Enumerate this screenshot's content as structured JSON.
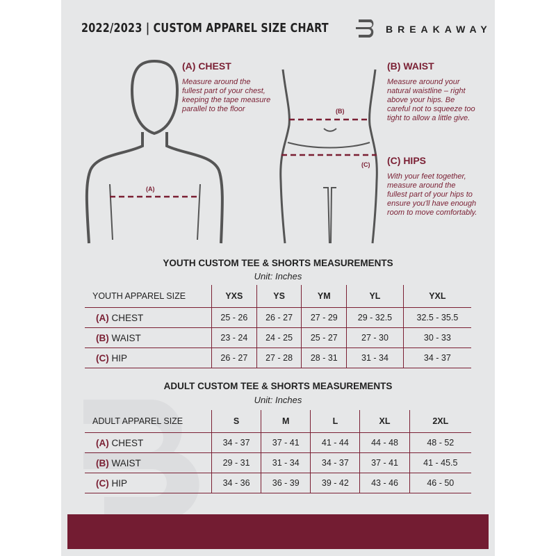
{
  "header": {
    "title": "2022/2023  |  CUSTOM APPAREL SIZE CHART",
    "brand": "BREAKAWAY"
  },
  "guides": {
    "chest": {
      "heading": "(A) CHEST",
      "text": "Measure around the fullest part of your chest, keeping the tape measure parallel to the floor",
      "marker": "(A)"
    },
    "waist": {
      "heading": "(B) WAIST",
      "text": "Measure around your natural waistline – right above your hips. Be careful not to squeeze too tight to allow a little give.",
      "marker": "(B)"
    },
    "hips": {
      "heading": "(C) HIPS",
      "text": "With your feet together, measure around the fullest part of your hips to ensure you'll have enough room to move comfortably.",
      "marker": "(C)"
    }
  },
  "youth": {
    "title": "YOUTH CUSTOM TEE & SHORTS MEASUREMENTS",
    "unit": "Unit: Inches",
    "corner": "YOUTH APPAREL SIZE",
    "sizes": [
      "YXS",
      "YS",
      "YM",
      "YL",
      "YXL"
    ],
    "rows": [
      {
        "code": "(A)",
        "name": "CHEST",
        "values": [
          "25 - 26",
          "26 - 27",
          "27 - 29",
          "29 - 32.5",
          "32.5 - 35.5"
        ]
      },
      {
        "code": "(B)",
        "name": "WAIST",
        "values": [
          "23 - 24",
          "24 - 25",
          "25 - 27",
          "27 - 30",
          "30 - 33"
        ]
      },
      {
        "code": "(C)",
        "name": "HIP",
        "values": [
          "26 - 27",
          "27 - 28",
          "28 - 31",
          "31 - 34",
          "34 - 37"
        ]
      }
    ]
  },
  "adult": {
    "title": "ADULT CUSTOM TEE & SHORTS MEASUREMENTS",
    "unit": "Unit: Inches",
    "corner": "ADULT APPAREL SIZE",
    "sizes": [
      "S",
      "M",
      "L",
      "XL",
      "2XL"
    ],
    "rows": [
      {
        "code": "(A)",
        "name": "CHEST",
        "values": [
          "34 - 37",
          "37 - 41",
          "41 - 44",
          "44 - 48",
          "48 - 52"
        ]
      },
      {
        "code": "(B)",
        "name": "WAIST",
        "values": [
          "29 - 31",
          "31 - 34",
          "34 - 37",
          "37 - 41",
          "41 - 45.5"
        ]
      },
      {
        "code": "(C)",
        "name": "HIP",
        "values": [
          "34 - 36",
          "36 - 39",
          "39 - 42",
          "43 - 46",
          "46 - 50"
        ]
      }
    ]
  },
  "colors": {
    "accent": "#7a1f33",
    "panel": "#e6e7e8",
    "band": "#731c32"
  }
}
